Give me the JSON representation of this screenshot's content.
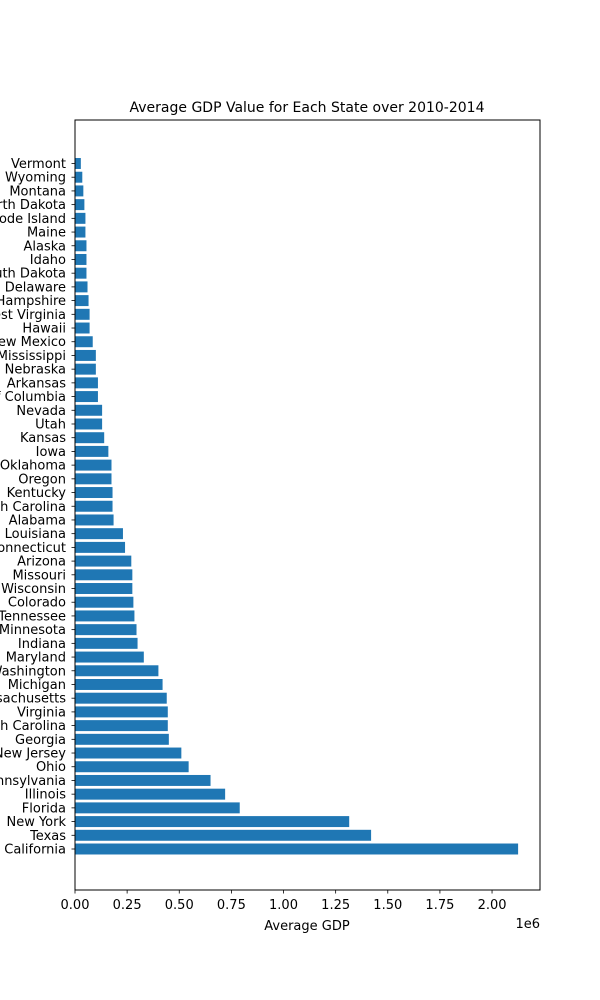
{
  "chart_data": {
    "type": "bar",
    "orientation": "horizontal",
    "title": "Average GDP Value for Each State over 2010-2014",
    "xlabel": "Average GDP",
    "ylabel": "",
    "x_offset_label": "1e6",
    "xlim": [
      0,
      2.23
    ],
    "xticks": [
      0.0,
      0.25,
      0.5,
      0.75,
      1.0,
      1.25,
      1.5,
      1.75,
      2.0
    ],
    "xtick_labels": [
      "0.00",
      "0.25",
      "0.50",
      "0.75",
      "1.00",
      "1.25",
      "1.50",
      "1.75",
      "2.00"
    ],
    "bar_color": "#1f77b4",
    "grid": false,
    "categories": [
      "California",
      "Texas",
      "New York",
      "Florida",
      "Illinois",
      "Pennsylvania",
      "Ohio",
      "New Jersey",
      "Georgia",
      "North Carolina",
      "Virginia",
      "Massachusetts",
      "Michigan",
      "Washington",
      "Maryland",
      "Indiana",
      "Minnesota",
      "Tennessee",
      "Colorado",
      "Wisconsin",
      "Missouri",
      "Arizona",
      "Connecticut",
      "Louisiana",
      "Alabama",
      "South Carolina",
      "Kentucky",
      "Oregon",
      "Oklahoma",
      "Iowa",
      "Kansas",
      "Utah",
      "Nevada",
      "District of Columbia",
      "Arkansas",
      "Nebraska",
      "Mississippi",
      "New Mexico",
      "Hawaii",
      "West Virginia",
      "New Hampshire",
      "Delaware",
      "South Dakota",
      "Idaho",
      "Alaska",
      "Maine",
      "Rhode Island",
      "North Dakota",
      "Montana",
      "Wyoming",
      "Vermont"
    ],
    "values": [
      2.125,
      1.42,
      1.315,
      0.79,
      0.72,
      0.65,
      0.545,
      0.51,
      0.45,
      0.445,
      0.445,
      0.44,
      0.42,
      0.4,
      0.33,
      0.3,
      0.295,
      0.285,
      0.28,
      0.275,
      0.275,
      0.27,
      0.24,
      0.23,
      0.185,
      0.18,
      0.18,
      0.175,
      0.175,
      0.16,
      0.14,
      0.13,
      0.13,
      0.11,
      0.11,
      0.1,
      0.1,
      0.085,
      0.07,
      0.07,
      0.065,
      0.06,
      0.055,
      0.055,
      0.055,
      0.05,
      0.05,
      0.045,
      0.04,
      0.035,
      0.028
    ]
  }
}
